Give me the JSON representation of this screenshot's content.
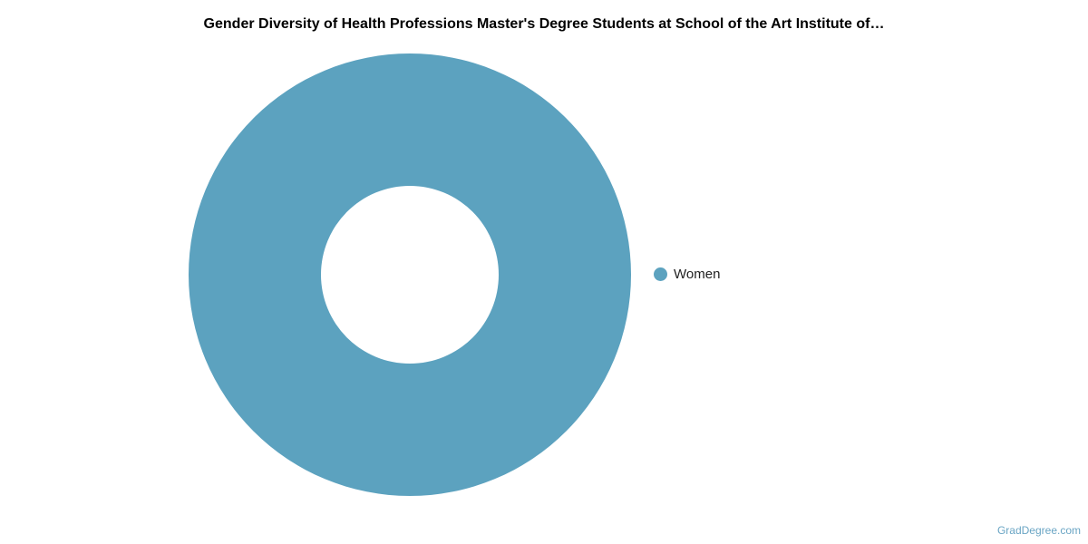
{
  "chart_data": {
    "type": "pie",
    "title": "Gender Diversity of Health Professions Master's Degree Students at School of the Art Institute of…",
    "donut": true,
    "slices": [
      {
        "label": "Women",
        "value": 100,
        "color": "#5ca2bf"
      }
    ],
    "legend_placement": "right"
  },
  "credit": "GradDegree.com"
}
